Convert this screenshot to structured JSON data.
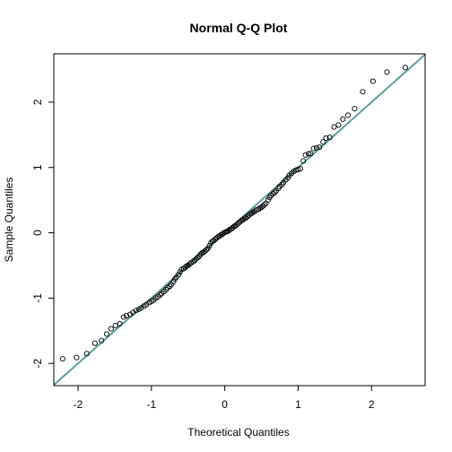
{
  "chart_data": {
    "type": "scatter",
    "title": "Normal Q-Q Plot",
    "xlabel": "Theoretical Quantiles",
    "ylabel": "Sample Quantiles",
    "xlim": [
      -2.33,
      2.73
    ],
    "ylim": [
      -2.34,
      2.74
    ],
    "x_ticks": [
      -2,
      -1,
      0,
      1,
      2
    ],
    "y_ticks": [
      -2,
      -1,
      0,
      1,
      2
    ],
    "x_tick_labels": [
      "-2",
      "-1",
      "0",
      "1",
      "2"
    ],
    "y_tick_labels": [
      "-2",
      "-1",
      "0",
      "1",
      "2"
    ],
    "grid": false,
    "reference_line": {
      "intercept": 0,
      "slope": 1,
      "color": "#5f9ea0"
    },
    "marker": {
      "shape": "open-circle",
      "stroke": "#000000"
    },
    "points": [
      [
        -2.21,
        -1.93
      ],
      [
        -2.02,
        -1.91
      ],
      [
        -1.88,
        -1.85
      ],
      [
        -1.77,
        -1.69
      ],
      [
        -1.68,
        -1.65
      ],
      [
        -1.61,
        -1.55
      ],
      [
        -1.55,
        -1.47
      ],
      [
        -1.49,
        -1.42
      ],
      [
        -1.43,
        -1.39
      ],
      [
        -1.38,
        -1.29
      ],
      [
        -1.34,
        -1.27
      ],
      [
        -1.29,
        -1.25
      ],
      [
        -1.25,
        -1.22
      ],
      [
        -1.21,
        -1.19
      ],
      [
        -1.17,
        -1.17
      ],
      [
        -1.14,
        -1.15
      ],
      [
        -1.1,
        -1.12
      ],
      [
        -1.07,
        -1.1
      ],
      [
        -1.03,
        -1.07
      ],
      [
        -1.0,
        -1.05
      ],
      [
        -0.97,
        -1.03
      ],
      [
        -0.94,
        -1.0
      ],
      [
        -0.91,
        -0.98
      ],
      [
        -0.88,
        -0.95
      ],
      [
        -0.86,
        -0.93
      ],
      [
        -0.83,
        -0.9
      ],
      [
        -0.8,
        -0.87
      ],
      [
        -0.78,
        -0.84
      ],
      [
        -0.75,
        -0.82
      ],
      [
        -0.73,
        -0.79
      ],
      [
        -0.7,
        -0.75
      ],
      [
        -0.68,
        -0.71
      ],
      [
        -0.66,
        -0.68
      ],
      [
        -0.63,
        -0.64
      ],
      [
        -0.61,
        -0.6
      ],
      [
        -0.59,
        -0.56
      ],
      [
        -0.56,
        -0.55
      ],
      [
        -0.54,
        -0.53
      ],
      [
        -0.52,
        -0.51
      ],
      [
        -0.5,
        -0.5
      ],
      [
        -0.48,
        -0.48
      ],
      [
        -0.46,
        -0.46
      ],
      [
        -0.43,
        -0.44
      ],
      [
        -0.41,
        -0.42
      ],
      [
        -0.39,
        -0.4
      ],
      [
        -0.37,
        -0.38
      ],
      [
        -0.35,
        -0.36
      ],
      [
        -0.33,
        -0.33
      ],
      [
        -0.31,
        -0.31
      ],
      [
        -0.29,
        -0.3
      ],
      [
        -0.27,
        -0.28
      ],
      [
        -0.25,
        -0.26
      ],
      [
        -0.23,
        -0.24
      ],
      [
        -0.21,
        -0.2
      ],
      [
        -0.19,
        -0.16
      ],
      [
        -0.17,
        -0.13
      ],
      [
        -0.15,
        -0.12
      ],
      [
        -0.13,
        -0.1
      ],
      [
        -0.11,
        -0.08
      ],
      [
        -0.09,
        -0.06
      ],
      [
        -0.07,
        -0.05
      ],
      [
        -0.05,
        -0.03
      ],
      [
        -0.03,
        -0.02
      ],
      [
        -0.01,
        0.0
      ],
      [
        0.01,
        0.01
      ],
      [
        0.03,
        0.02
      ],
      [
        0.05,
        0.03
      ],
      [
        0.07,
        0.05
      ],
      [
        0.09,
        0.06
      ],
      [
        0.11,
        0.08
      ],
      [
        0.13,
        0.1
      ],
      [
        0.15,
        0.11
      ],
      [
        0.17,
        0.13
      ],
      [
        0.19,
        0.15
      ],
      [
        0.21,
        0.17
      ],
      [
        0.23,
        0.19
      ],
      [
        0.25,
        0.2
      ],
      [
        0.27,
        0.22
      ],
      [
        0.29,
        0.23
      ],
      [
        0.31,
        0.25
      ],
      [
        0.33,
        0.27
      ],
      [
        0.35,
        0.29
      ],
      [
        0.37,
        0.3
      ],
      [
        0.39,
        0.32
      ],
      [
        0.41,
        0.33
      ],
      [
        0.43,
        0.35
      ],
      [
        0.46,
        0.36
      ],
      [
        0.48,
        0.38
      ],
      [
        0.5,
        0.39
      ],
      [
        0.52,
        0.41
      ],
      [
        0.54,
        0.43
      ],
      [
        0.56,
        0.45
      ],
      [
        0.59,
        0.5
      ],
      [
        0.61,
        0.54
      ],
      [
        0.63,
        0.57
      ],
      [
        0.66,
        0.6
      ],
      [
        0.68,
        0.62
      ],
      [
        0.7,
        0.64
      ],
      [
        0.73,
        0.68
      ],
      [
        0.75,
        0.71
      ],
      [
        0.78,
        0.74
      ],
      [
        0.8,
        0.77
      ],
      [
        0.83,
        0.81
      ],
      [
        0.86,
        0.84
      ],
      [
        0.88,
        0.88
      ],
      [
        0.91,
        0.91
      ],
      [
        0.94,
        0.94
      ],
      [
        0.97,
        0.96
      ],
      [
        1.0,
        0.97
      ],
      [
        1.03,
        0.98
      ],
      [
        1.07,
        1.1
      ],
      [
        1.1,
        1.19
      ],
      [
        1.14,
        1.21
      ],
      [
        1.17,
        1.21
      ],
      [
        1.21,
        1.29
      ],
      [
        1.25,
        1.3
      ],
      [
        1.29,
        1.31
      ],
      [
        1.34,
        1.39
      ],
      [
        1.38,
        1.45
      ],
      [
        1.43,
        1.46
      ],
      [
        1.49,
        1.62
      ],
      [
        1.55,
        1.65
      ],
      [
        1.61,
        1.74
      ],
      [
        1.68,
        1.8
      ],
      [
        1.77,
        1.9
      ],
      [
        1.88,
        2.16
      ],
      [
        2.02,
        2.32
      ],
      [
        2.21,
        2.46
      ],
      [
        2.46,
        2.53
      ]
    ]
  }
}
